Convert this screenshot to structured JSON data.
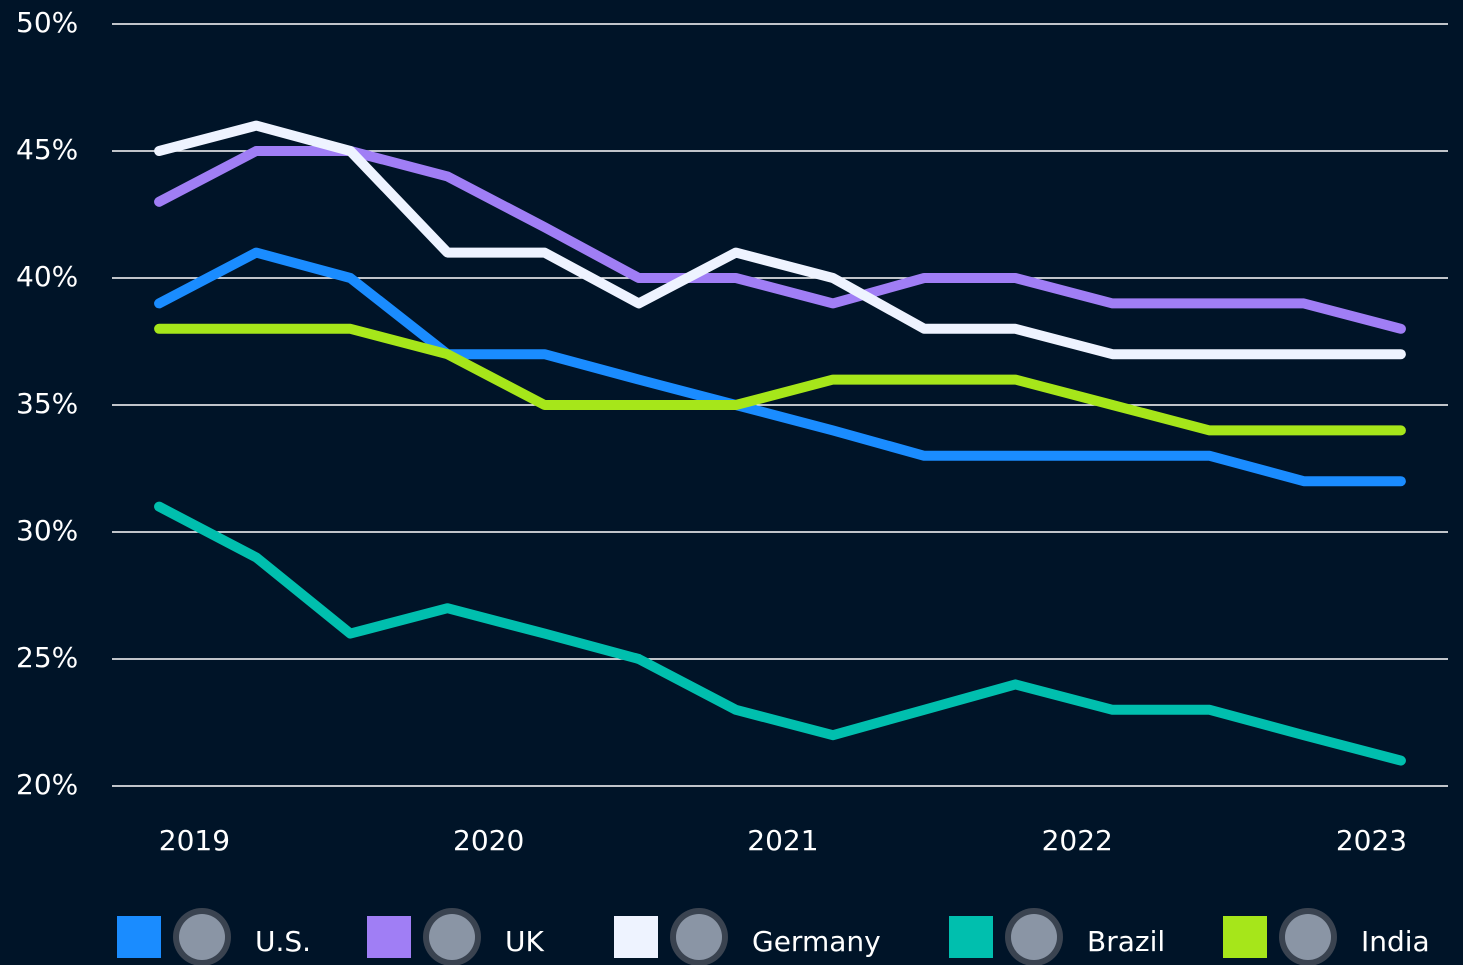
{
  "chart_data": {
    "type": "line",
    "x": [
      2018.88,
      2019.21,
      2019.53,
      2019.86,
      2020.19,
      2020.51,
      2020.84,
      2021.17,
      2021.48,
      2021.79,
      2022.12,
      2022.45,
      2022.77,
      2023.1
    ],
    "xlim": [
      2018.72,
      2023.26
    ],
    "xticks": [
      2019,
      2020,
      2021,
      2022,
      2023
    ],
    "ylim": [
      20,
      50
    ],
    "yticks": [
      {
        "value": 20,
        "label": "20%"
      },
      {
        "value": 25,
        "label": "25%"
      },
      {
        "value": 30,
        "label": "30%"
      },
      {
        "value": 35,
        "label": "35%"
      },
      {
        "value": 40,
        "label": "40%"
      },
      {
        "value": 45,
        "label": "45%"
      },
      {
        "value": 50,
        "label": "50%"
      }
    ],
    "grid": true,
    "legend": "bottom",
    "series": [
      {
        "name": "U.S.",
        "color": "#1a8cff",
        "values": [
          39,
          41,
          40,
          37,
          37,
          36,
          35,
          34,
          33,
          33,
          33,
          33,
          32,
          32
        ]
      },
      {
        "name": "UK",
        "color": "#a07ef5",
        "values": [
          43,
          45,
          45,
          44,
          42,
          40,
          40,
          39,
          40,
          40,
          39,
          39,
          39,
          38
        ]
      },
      {
        "name": "Germany",
        "color": "#eef3ff",
        "values": [
          45,
          46,
          45,
          41,
          41,
          39,
          41,
          40,
          38,
          38,
          37,
          37,
          37,
          37
        ]
      },
      {
        "name": "Brazil",
        "color": "#00bfae",
        "values": [
          31,
          29,
          26,
          27,
          26,
          25,
          23,
          22,
          23,
          24,
          23,
          23,
          22,
          21
        ]
      },
      {
        "name": "India",
        "color": "#a6e61a",
        "values": [
          38,
          38,
          38,
          37,
          35,
          35,
          35,
          36,
          36,
          36,
          35,
          34,
          34,
          34
        ]
      }
    ]
  }
}
